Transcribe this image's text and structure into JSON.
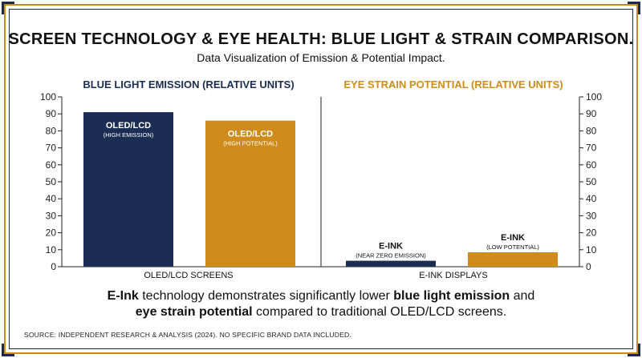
{
  "title": "SCREEN TECHNOLOGY & EYE HEALTH: BLUE LIGHT & STRAIN COMPARISON.",
  "subtitle": "Data Visualization of Emission & Potential Impact.",
  "colors": {
    "navy": "#1b2d52",
    "gold": "#d08c1b",
    "frame_gold": "#c98a1e"
  },
  "chart_data": {
    "type": "bar",
    "panels": [
      {
        "title": "BLUE LIGHT EMISSION (RELATIVE UNITS)",
        "title_color": "#1b2d52"
      },
      {
        "title": "EYE STRAIN POTENTIAL (RELATIVE UNITS)",
        "title_color": "#d08c1b"
      }
    ],
    "ylim": [
      0,
      100
    ],
    "yticks": [
      0,
      10,
      20,
      30,
      40,
      50,
      60,
      70,
      80,
      90,
      100
    ],
    "groups": [
      "OLED/LCD SCREENS",
      "E-INK DISPLAYS"
    ],
    "series": [
      {
        "name": "Blue Light Emission",
        "color": "#1b2d52",
        "values": [
          91,
          3.5
        ]
      },
      {
        "name": "Eye Strain Potential",
        "color": "#d08c1b",
        "values": [
          86,
          8.5
        ]
      }
    ],
    "bar_labels": [
      {
        "main": "OLED/LCD",
        "sub": "(HIGH EMISSION)"
      },
      {
        "main": "OLED/LCD",
        "sub": "(HIGH POTENTIAL)"
      },
      {
        "main": "E-INK",
        "sub": "(NEAR ZERO EMISSION)"
      },
      {
        "main": "E-INK",
        "sub": "(LOW POTENTIAL)"
      }
    ]
  },
  "footnote": {
    "parts": [
      {
        "text": "E-Ink",
        "bold": true
      },
      {
        "text": " technology demonstrates significantly lower ",
        "bold": false
      },
      {
        "text": "blue light emission",
        "bold": true
      },
      {
        "text": " and",
        "bold": false
      },
      {
        "text": "\n",
        "bold": false
      },
      {
        "text": "eye strain potential",
        "bold": true
      },
      {
        "text": " compared to traditional OLED/LCD screens.",
        "bold": false
      }
    ]
  },
  "source": "SOURCE: INDEPENDENT RESEARCH & ANALYSIS (2024). NO SPECIFIC BRAND DATA INCLUDED."
}
